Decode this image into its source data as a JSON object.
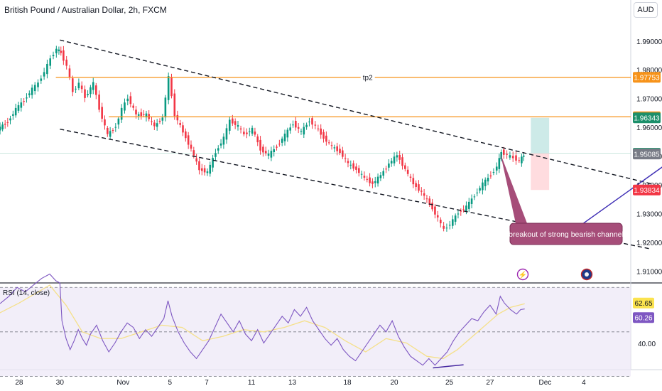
{
  "header": {
    "title": "British Pound / Australian Dollar, 2h, FXCM",
    "currency": "AUD"
  },
  "price_axis_labels": [
    "1.99000",
    "1.98000",
    "1.97000",
    "1.96000",
    "1.95000",
    "1.94000",
    "1.93000",
    "1.92000",
    "1.91000"
  ],
  "price_badges": [
    {
      "value": "1.97753",
      "color": "#f7931a"
    },
    {
      "value": "1.96380",
      "color": "#f7931a"
    },
    {
      "value": "1.96343",
      "color": "#1b8f6a"
    },
    {
      "value": "1.95109",
      "color": "#1b8f6a"
    },
    {
      "value": "1.95085",
      "color": "#787b86"
    },
    {
      "value": "1.93834",
      "color": "#f23645"
    }
  ],
  "rsi_badges": [
    {
      "value": "62.65",
      "color": "#fbe34f"
    },
    {
      "value": "60.26",
      "color": "#7e57c2"
    }
  ],
  "x_axis_labels": [
    "28",
    "30",
    "Nov",
    "5",
    "7",
    "11",
    "13",
    "18",
    "20",
    "25",
    "27",
    "Dec",
    "4"
  ],
  "annotations": {
    "tp2_label": "tp2",
    "callout_text": "breakout of strong bearish channel"
  },
  "rsi": {
    "title": "RSI (14, close)",
    "axis_label": "40.00"
  },
  "chart_data": {
    "type": "candlestick",
    "title": "British Pound / Australian Dollar, 2h, FXCM",
    "ylim": [
      1.906,
      1.997
    ],
    "rsi_ylim": [
      33,
      72
    ],
    "horizontal_levels": [
      {
        "label": "tp2",
        "value": 1.97753,
        "color": "#f7931a"
      },
      {
        "value": 1.9638,
        "color": "#f7931a"
      },
      {
        "value": 1.95109,
        "color": "#1b8f6a"
      }
    ],
    "channel_upper": [
      [
        0.5,
        1.9905
      ],
      [
        29.5,
        1.9405
      ]
    ],
    "channel_lower": [
      [
        0.5,
        1.9595
      ],
      [
        29.5,
        1.9178
      ]
    ],
    "trendline": [
      [
        25.4,
        1.9228
      ],
      [
        31.7,
        1.9547
      ]
    ],
    "trade_box": {
      "entry": 1.95109,
      "target": 1.96343,
      "stop": 1.93834
    },
    "rsi_levels": [
      70,
      50,
      30
    ],
    "price_points": [
      [
        -4.6,
        1.9445
      ],
      [
        -4.0,
        1.947
      ],
      [
        -3.6,
        1.951
      ],
      [
        -3.2,
        1.9485
      ],
      [
        -2.9,
        1.955
      ],
      [
        -2.5,
        1.9595
      ],
      [
        -2.0,
        1.962
      ],
      [
        -1.6,
        1.9665
      ],
      [
        -1.2,
        1.9695
      ],
      [
        -0.8,
        1.9735
      ],
      [
        -0.5,
        1.9755
      ],
      [
        -0.2,
        1.9795
      ],
      [
        0.1,
        1.984
      ],
      [
        0.4,
        1.9875
      ],
      [
        0.6,
        1.986
      ],
      [
        0.9,
        1.9815
      ],
      [
        1.2,
        1.9725
      ],
      [
        1.5,
        1.9755
      ],
      [
        1.8,
        1.9705
      ],
      [
        2.2,
        1.9755
      ],
      [
        2.5,
        1.9665
      ],
      [
        2.9,
        1.9575
      ],
      [
        3.3,
        1.9605
      ],
      [
        3.6,
        1.9665
      ],
      [
        3.9,
        1.9705
      ],
      [
        4.3,
        1.9645
      ],
      [
        4.8,
        1.9645
      ],
      [
        5.2,
        1.9605
      ],
      [
        5.6,
        1.9635
      ],
      [
        5.9,
        1.9775
      ],
      [
        6.2,
        1.9645
      ],
      [
        6.6,
        1.9585
      ],
      [
        7.0,
        1.9525
      ],
      [
        7.4,
        1.9455
      ],
      [
        7.8,
        1.9445
      ],
      [
        8.2,
        1.9515
      ],
      [
        8.6,
        1.9565
      ],
      [
        8.9,
        1.9625
      ],
      [
        9.3,
        1.9605
      ],
      [
        9.6,
        1.9575
      ],
      [
        10.0,
        1.9595
      ],
      [
        10.4,
        1.9525
      ],
      [
        10.8,
        1.9505
      ],
      [
        11.2,
        1.9535
      ],
      [
        11.6,
        1.9575
      ],
      [
        12.0,
        1.9615
      ],
      [
        12.4,
        1.9585
      ],
      [
        12.8,
        1.9625
      ],
      [
        13.1,
        1.9605
      ],
      [
        13.5,
        1.9565
      ],
      [
        13.9,
        1.9535
      ],
      [
        14.3,
        1.9515
      ],
      [
        14.7,
        1.9475
      ],
      [
        15.1,
        1.9455
      ],
      [
        15.5,
        1.9425
      ],
      [
        15.9,
        1.9405
      ],
      [
        16.3,
        1.9435
      ],
      [
        16.7,
        1.9475
      ],
      [
        17.1,
        1.9505
      ],
      [
        17.5,
        1.9455
      ],
      [
        17.9,
        1.9405
      ],
      [
        18.3,
        1.9375
      ],
      [
        18.7,
        1.9335
      ],
      [
        19.1,
        1.9285
      ],
      [
        19.4,
        1.9245
      ],
      [
        19.7,
        1.9265
      ],
      [
        20.1,
        1.9305
      ],
      [
        20.5,
        1.9325
      ],
      [
        20.9,
        1.9365
      ],
      [
        21.3,
        1.9405
      ],
      [
        21.7,
        1.9435
      ],
      [
        22.0,
        1.9465
      ],
      [
        22.2,
        1.9515
      ],
      [
        22.5,
        1.9505
      ],
      [
        22.8,
        1.9495
      ],
      [
        23.1,
        1.9485
      ],
      [
        23.3,
        1.9505
      ]
    ],
    "rsi_points": [
      [
        -4.6,
        48
      ],
      [
        -4.3,
        52
      ],
      [
        -4.0,
        55
      ],
      [
        -3.6,
        59
      ],
      [
        -3.2,
        57
      ],
      [
        -2.8,
        61
      ],
      [
        -2.4,
        63
      ],
      [
        -2.0,
        66
      ],
      [
        -1.6,
        70
      ],
      [
        -1.2,
        68
      ],
      [
        -0.8,
        71
      ],
      [
        -0.4,
        74
      ],
      [
        0.0,
        76
      ],
      [
        0.3,
        73
      ],
      [
        0.5,
        72
      ],
      [
        0.6,
        55
      ],
      [
        0.8,
        47
      ],
      [
        1.0,
        42
      ],
      [
        1.2,
        46
      ],
      [
        1.4,
        51
      ],
      [
        1.6,
        47
      ],
      [
        1.8,
        44
      ],
      [
        2.0,
        49
      ],
      [
        2.3,
        53
      ],
      [
        2.6,
        46
      ],
      [
        2.9,
        41
      ],
      [
        3.2,
        45
      ],
      [
        3.5,
        50
      ],
      [
        3.8,
        54
      ],
      [
        4.1,
        52
      ],
      [
        4.4,
        47
      ],
      [
        4.7,
        51
      ],
      [
        5.0,
        48
      ],
      [
        5.3,
        52
      ],
      [
        5.6,
        56
      ],
      [
        5.8,
        64
      ],
      [
        6.0,
        57
      ],
      [
        6.3,
        50
      ],
      [
        6.6,
        45
      ],
      [
        6.9,
        41
      ],
      [
        7.2,
        38
      ],
      [
        7.5,
        42
      ],
      [
        7.8,
        46
      ],
      [
        8.1,
        52
      ],
      [
        8.4,
        58
      ],
      [
        8.7,
        54
      ],
      [
        9.0,
        50
      ],
      [
        9.3,
        55
      ],
      [
        9.6,
        49
      ],
      [
        9.9,
        46
      ],
      [
        10.2,
        51
      ],
      [
        10.5,
        45
      ],
      [
        10.8,
        49
      ],
      [
        11.1,
        53
      ],
      [
        11.4,
        57
      ],
      [
        11.7,
        54
      ],
      [
        12.0,
        60
      ],
      [
        12.3,
        57
      ],
      [
        12.6,
        61
      ],
      [
        12.9,
        55
      ],
      [
        13.2,
        51
      ],
      [
        13.5,
        47
      ],
      [
        13.8,
        44
      ],
      [
        14.1,
        47
      ],
      [
        14.4,
        42
      ],
      [
        14.7,
        39
      ],
      [
        15.0,
        37
      ],
      [
        15.3,
        41
      ],
      [
        15.6,
        45
      ],
      [
        15.9,
        49
      ],
      [
        16.2,
        53
      ],
      [
        16.5,
        50
      ],
      [
        16.8,
        55
      ],
      [
        17.1,
        48
      ],
      [
        17.4,
        43
      ],
      [
        17.7,
        39
      ],
      [
        18.0,
        37
      ],
      [
        18.3,
        35
      ],
      [
        18.6,
        38
      ],
      [
        18.9,
        35
      ],
      [
        19.2,
        38
      ],
      [
        19.5,
        41
      ],
      [
        19.8,
        46
      ],
      [
        20.1,
        50
      ],
      [
        20.4,
        53
      ],
      [
        20.7,
        56
      ],
      [
        21.0,
        55
      ],
      [
        21.3,
        59
      ],
      [
        21.6,
        62
      ],
      [
        21.9,
        58
      ],
      [
        22.1,
        66
      ],
      [
        22.3,
        63
      ],
      [
        22.6,
        60
      ],
      [
        22.9,
        58
      ],
      [
        23.1,
        60
      ],
      [
        23.3,
        60.3
      ]
    ],
    "rsi_ma_points": [
      [
        -4.6,
        52
      ],
      [
        -3.0,
        56
      ],
      [
        -1.5,
        63
      ],
      [
        0.0,
        71
      ],
      [
        0.8,
        62
      ],
      [
        1.6,
        50
      ],
      [
        2.5,
        47
      ],
      [
        3.5,
        47
      ],
      [
        4.5,
        50
      ],
      [
        5.5,
        53
      ],
      [
        6.5,
        52
      ],
      [
        7.5,
        46
      ],
      [
        8.5,
        48
      ],
      [
        9.5,
        51
      ],
      [
        10.5,
        50
      ],
      [
        11.5,
        52
      ],
      [
        12.5,
        55
      ],
      [
        13.5,
        52
      ],
      [
        14.5,
        46
      ],
      [
        15.5,
        41
      ],
      [
        16.5,
        47
      ],
      [
        17.5,
        45
      ],
      [
        18.5,
        39
      ],
      [
        19.3,
        38
      ],
      [
        20.0,
        42
      ],
      [
        21.0,
        50
      ],
      [
        22.0,
        58
      ],
      [
        22.6,
        61
      ],
      [
        23.3,
        62.65
      ]
    ]
  }
}
